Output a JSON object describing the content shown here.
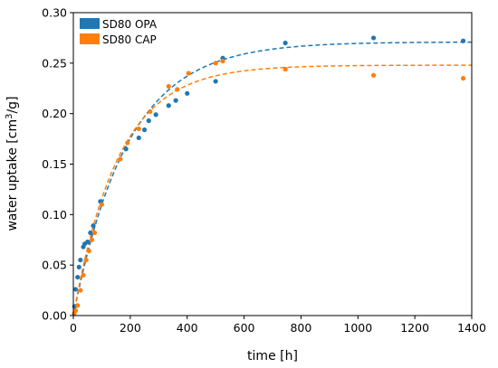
{
  "chart_data": {
    "type": "scatter",
    "title": "",
    "xlabel": "time [h]",
    "ylabel_prefix": "water uptake [cm",
    "ylabel_sup": "3",
    "ylabel_suffix": "/g]",
    "xlim": [
      0,
      1400
    ],
    "ylim": [
      0,
      0.3
    ],
    "xticks": [
      0,
      200,
      400,
      600,
      800,
      1000,
      1200,
      1400
    ],
    "yticks": [
      0.0,
      0.05,
      0.1,
      0.15,
      0.2,
      0.25,
      0.3
    ],
    "xtick_labels": [
      "0",
      "200",
      "400",
      "600",
      "800",
      "1000",
      "1200",
      "1400"
    ],
    "ytick_labels": [
      "0.00",
      "0.05",
      "0.10",
      "0.15",
      "0.20",
      "0.25",
      "0.30"
    ],
    "grid": false,
    "legend_position": "top-left",
    "series": [
      {
        "name": "SD80 OPA",
        "color": "#1f77b4",
        "x": [
          4,
          8,
          15,
          20,
          25,
          35,
          40,
          50,
          60,
          70,
          95,
          185,
          230,
          250,
          265,
          290,
          335,
          360,
          400,
          500,
          525,
          745,
          1055,
          1370
        ],
        "y": [
          0.009,
          0.026,
          0.038,
          0.048,
          0.055,
          0.068,
          0.071,
          0.073,
          0.082,
          0.089,
          0.113,
          0.165,
          0.176,
          0.184,
          0.193,
          0.199,
          0.208,
          0.213,
          0.22,
          0.232,
          0.255,
          0.27,
          0.275,
          0.272
        ],
        "fit": {
          "a": 0.271,
          "k": 0.0052
        }
      },
      {
        "name": "SD80 CAP",
        "color": "#ff7f0e",
        "x": [
          3,
          8,
          15,
          25,
          35,
          45,
          55,
          65,
          75,
          100,
          165,
          190,
          230,
          270,
          335,
          365,
          405,
          500,
          525,
          745,
          1055,
          1370
        ],
        "y": [
          0.002,
          0.005,
          0.01,
          0.025,
          0.04,
          0.055,
          0.064,
          0.075,
          0.082,
          0.11,
          0.155,
          0.171,
          0.185,
          0.202,
          0.227,
          0.224,
          0.24,
          0.25,
          0.252,
          0.244,
          0.238,
          0.235
        ],
        "fit": {
          "a": 0.248,
          "k": 0.0063
        }
      }
    ]
  }
}
